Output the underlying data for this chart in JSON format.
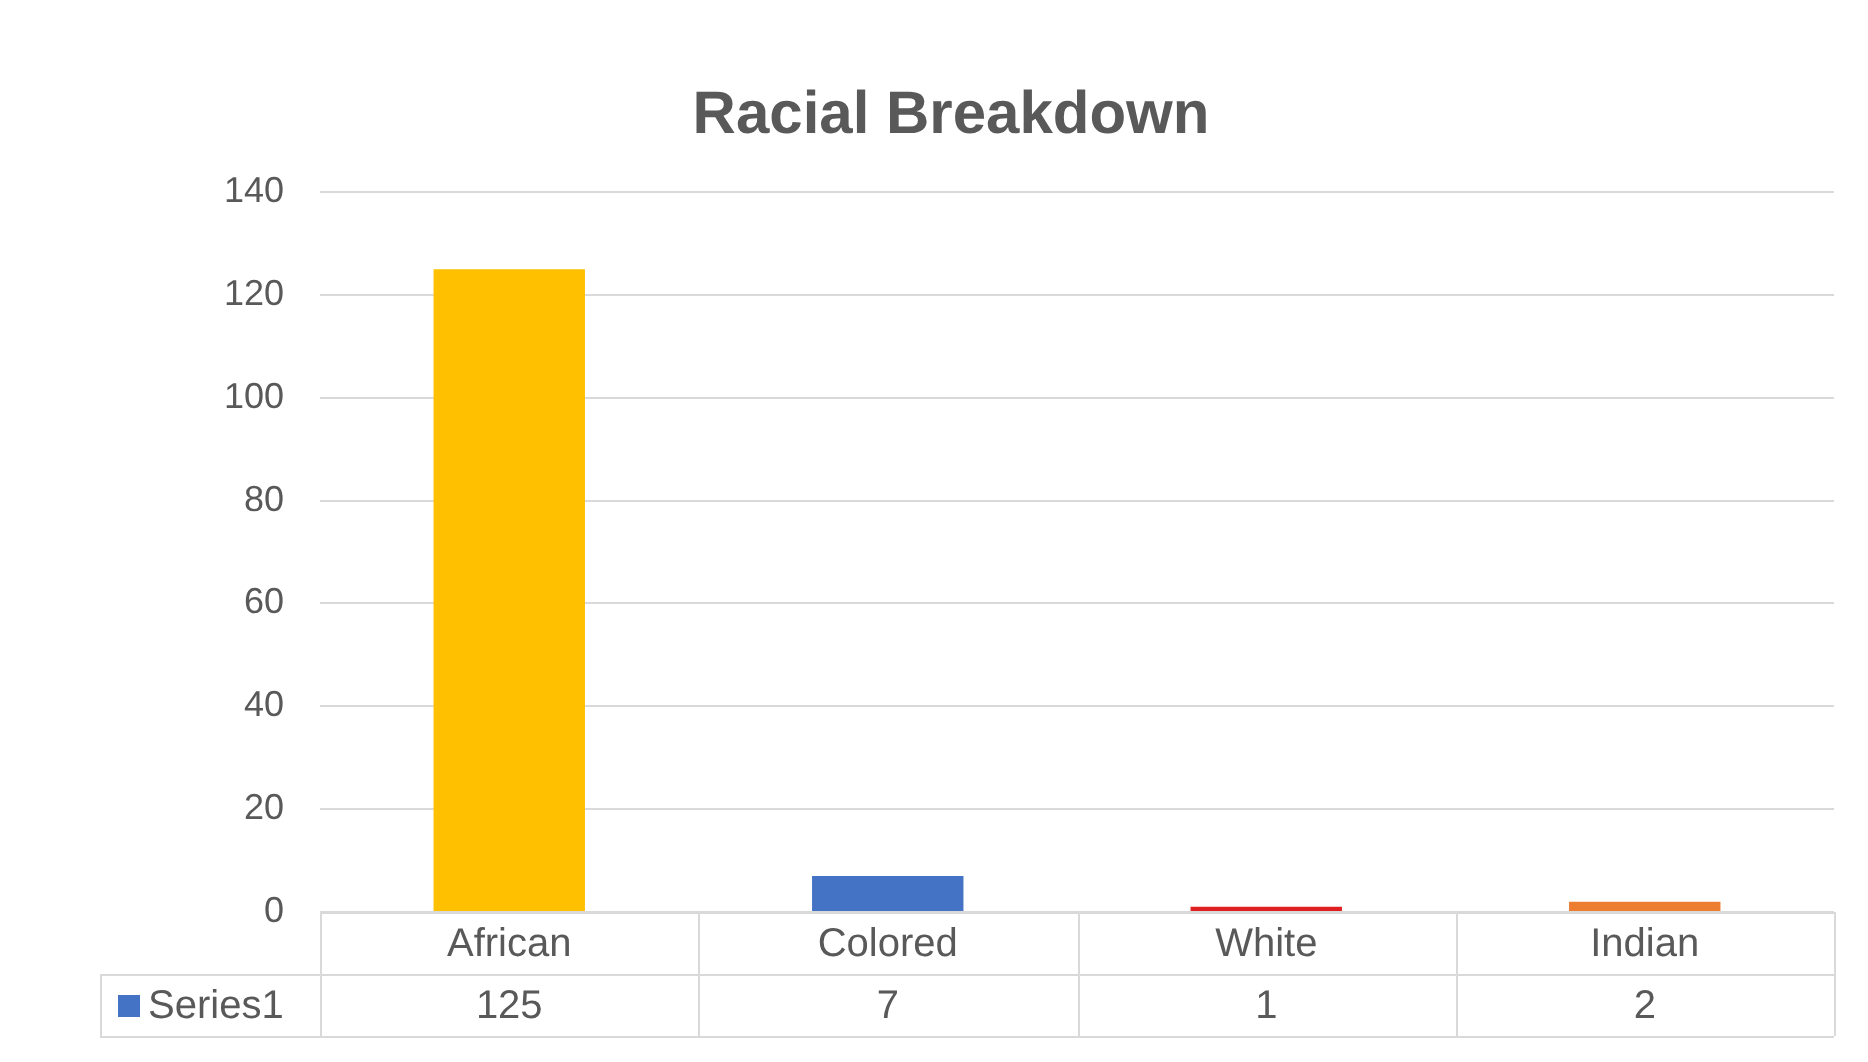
{
  "chart_data": {
    "type": "bar",
    "title": "Racial Breakdown",
    "categories": [
      "African",
      "Colored",
      "White",
      "Indian"
    ],
    "series": [
      {
        "name": "Series1",
        "color": "#4472c4",
        "colors": [
          "#ffc000",
          "#4472c4",
          "#e02020",
          "#ed7d31"
        ],
        "values": [
          125,
          7,
          1,
          2
        ]
      }
    ],
    "ylim": [
      0,
      140
    ],
    "yticks": [
      0,
      20,
      40,
      60,
      80,
      100,
      120,
      140
    ],
    "grid": "y",
    "legend": "bottom",
    "data_labels": true
  }
}
